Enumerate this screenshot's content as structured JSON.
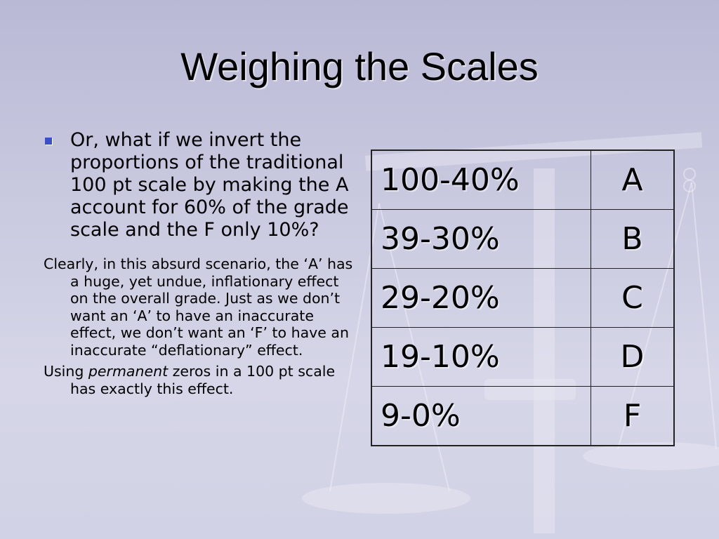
{
  "slide": {
    "title": "Weighing the Scales",
    "bullet": "Or, what if we invert the proportions of the traditional 100 pt scale by making the A account for 60% of the grade scale and the F only 10%?",
    "paragraph1": "Clearly, in this absurd scenario, the ‘A’ has a huge, yet undue, inflationary effect on the overall grade. Just as we don’t want an ‘A’ to have an inaccurate effect, we don’t want an ‘F’ to have an inaccurate “deflationary” effect.",
    "paragraph2_before": "Using ",
    "paragraph2_emphasis": "permanent",
    "paragraph2_after": " zeros in a 100 pt scale has exactly this effect."
  },
  "table": {
    "rows": [
      {
        "range": "100-40%",
        "grade": "A"
      },
      {
        "range": "39-30%",
        "grade": "B"
      },
      {
        "range": "29-20%",
        "grade": "C"
      },
      {
        "range": "19-10%",
        "grade": "D"
      },
      {
        "range": "9-0%",
        "grade": "F"
      }
    ]
  },
  "icons": {
    "bullet": "square-bullet-icon",
    "background": "balance-scale-icon"
  },
  "colors": {
    "background": "#c8c8df",
    "bullet": "#3a4fc8",
    "text": "#000000"
  }
}
